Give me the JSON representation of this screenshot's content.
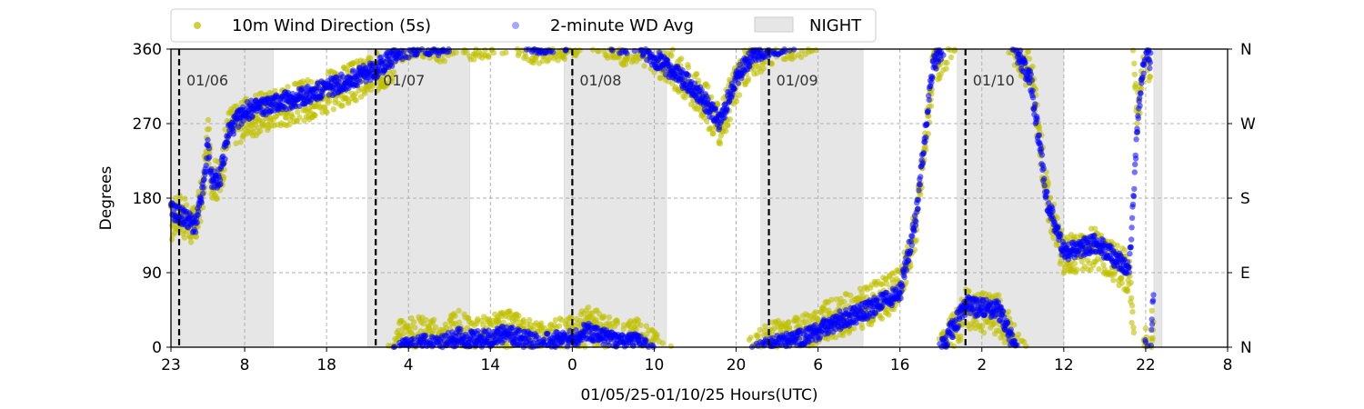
{
  "chart_data": {
    "type": "scatter",
    "xlabel": "01/05/25-01/10/25  Hours(UTC)",
    "ylabel": "Degrees",
    "ylim": [
      0,
      360
    ],
    "yticks": [
      0,
      90,
      180,
      270,
      360
    ],
    "right_ticks": [
      {
        "value": 0,
        "label": "N"
      },
      {
        "value": 90,
        "label": "E"
      },
      {
        "value": 180,
        "label": "S"
      },
      {
        "value": 270,
        "label": "W"
      },
      {
        "value": 360,
        "label": "N"
      }
    ],
    "x_start": "2025-01-05 23:00",
    "x_end": "2025-01-11 08:00",
    "xticks": [
      {
        "time": "2025-01-05 23:00",
        "label": "23"
      },
      {
        "time": "2025-01-06 08:00",
        "label": "8"
      },
      {
        "time": "2025-01-06 18:00",
        "label": "18"
      },
      {
        "time": "2025-01-07 04:00",
        "label": "4"
      },
      {
        "time": "2025-01-07 14:00",
        "label": "14"
      },
      {
        "time": "2025-01-08 00:00",
        "label": "0"
      },
      {
        "time": "2025-01-08 10:00",
        "label": "10"
      },
      {
        "time": "2025-01-08 20:00",
        "label": "20"
      },
      {
        "time": "2025-01-09 06:00",
        "label": "6"
      },
      {
        "time": "2025-01-09 16:00",
        "label": "16"
      },
      {
        "time": "2025-01-10 02:00",
        "label": "2"
      },
      {
        "time": "2025-01-10 12:00",
        "label": "12"
      },
      {
        "time": "2025-01-10 22:00",
        "label": "22"
      },
      {
        "time": "2025-01-11 08:00",
        "label": "8"
      }
    ],
    "day_markers": [
      {
        "time": "2025-01-06 00:00",
        "label": "01/06"
      },
      {
        "time": "2025-01-07 00:00",
        "label": "01/07"
      },
      {
        "time": "2025-01-08 00:00",
        "label": "01/08"
      },
      {
        "time": "2025-01-09 00:00",
        "label": "01/09"
      },
      {
        "time": "2025-01-10 00:00",
        "label": "01/10"
      }
    ],
    "night_periods": [
      {
        "start": "2025-01-05 23:00",
        "end": "2025-01-06 11:30"
      },
      {
        "start": "2025-01-06 23:00",
        "end": "2025-01-07 11:30"
      },
      {
        "start": "2025-01-07 23:00",
        "end": "2025-01-08 11:30"
      },
      {
        "start": "2025-01-08 23:00",
        "end": "2025-01-09 11:30"
      },
      {
        "start": "2025-01-09 23:00",
        "end": "2025-01-10 12:00"
      },
      {
        "start": "2025-01-10 23:00",
        "end": "2025-01-11 00:00"
      }
    ],
    "grid": true,
    "legend_placement": "top-center-outside",
    "legend": [
      {
        "label": "10m Wind Direction (5s)",
        "kind": "marker",
        "color": "#bfbf00"
      },
      {
        "label": "2-minute WD Avg",
        "kind": "marker",
        "color": "#0000ff"
      },
      {
        "label": "NIGHT",
        "kind": "patch",
        "color": "#e6e6e6"
      }
    ],
    "series": [
      {
        "name": "10m Wind Direction (5s)",
        "color": "#bfbf00",
        "points": [
          [
            "2025-01-05 23:00",
            150
          ],
          [
            "2025-01-06 00:00",
            165
          ],
          [
            "2025-01-06 01:00",
            150
          ],
          [
            "2025-01-06 02:00",
            145
          ],
          [
            "2025-01-06 03:00",
            195
          ],
          [
            "2025-01-06 03:30",
            255
          ],
          [
            "2025-01-06 04:00",
            205
          ],
          [
            "2025-01-06 05:00",
            200
          ],
          [
            "2025-01-06 06:00",
            265
          ],
          [
            "2025-01-06 08:00",
            275
          ],
          [
            "2025-01-06 12:00",
            290
          ],
          [
            "2025-01-06 16:00",
            300
          ],
          [
            "2025-01-06 20:00",
            315
          ],
          [
            "2025-01-07 00:00",
            330
          ],
          [
            "2025-01-07 02:00",
            345
          ],
          [
            "2025-01-07 03:00",
            10
          ],
          [
            "2025-01-07 06:00",
            15
          ],
          [
            "2025-01-07 08:00",
            5
          ],
          [
            "2025-01-07 10:00",
            20
          ],
          [
            "2025-01-07 12:00",
            10
          ],
          [
            "2025-01-07 16:00",
            20
          ],
          [
            "2025-01-07 20:00",
            5
          ],
          [
            "2025-01-08 00:00",
            15
          ],
          [
            "2025-01-08 02:00",
            25
          ],
          [
            "2025-01-08 04:00",
            15
          ],
          [
            "2025-01-08 06:00",
            5
          ],
          [
            "2025-01-08 08:00",
            10
          ],
          [
            "2025-01-08 10:00",
            355
          ],
          [
            "2025-01-08 12:00",
            340
          ],
          [
            "2025-01-08 14:00",
            320
          ],
          [
            "2025-01-08 16:00",
            300
          ],
          [
            "2025-01-08 18:00",
            265
          ],
          [
            "2025-01-08 20:00",
            320
          ],
          [
            "2025-01-08 22:00",
            350
          ],
          [
            "2025-01-09 00:00",
            5
          ],
          [
            "2025-01-09 04:00",
            15
          ],
          [
            "2025-01-09 08:00",
            35
          ],
          [
            "2025-01-09 12:00",
            50
          ],
          [
            "2025-01-09 16:00",
            70
          ],
          [
            "2025-01-09 18:00",
            150
          ],
          [
            "2025-01-09 20:00",
            330
          ],
          [
            "2025-01-10 00:00",
            45
          ],
          [
            "2025-01-10 04:00",
            40
          ],
          [
            "2025-01-10 08:00",
            330
          ],
          [
            "2025-01-10 10:00",
            180
          ],
          [
            "2025-01-10 12:00",
            110
          ],
          [
            "2025-01-10 16:00",
            120
          ],
          [
            "2025-01-10 20:00",
            90
          ],
          [
            "2025-01-10 21:00",
            280
          ],
          [
            "2025-01-10 22:00",
            10
          ],
          [
            "2025-01-10 22:30",
            340
          ],
          [
            "2025-01-10 23:00",
            60
          ]
        ]
      },
      {
        "name": "2-minute WD Avg",
        "color": "#0000ff",
        "points": [
          [
            "2025-01-05 23:00",
            165
          ],
          [
            "2025-01-06 00:00",
            160
          ],
          [
            "2025-01-06 01:00",
            155
          ],
          [
            "2025-01-06 02:00",
            145
          ],
          [
            "2025-01-06 03:00",
            195
          ],
          [
            "2025-01-06 03:30",
            245
          ],
          [
            "2025-01-06 04:00",
            200
          ],
          [
            "2025-01-06 05:00",
            205
          ],
          [
            "2025-01-06 06:00",
            260
          ],
          [
            "2025-01-06 08:00",
            285
          ],
          [
            "2025-01-06 12:00",
            295
          ],
          [
            "2025-01-06 16:00",
            305
          ],
          [
            "2025-01-06 20:00",
            320
          ],
          [
            "2025-01-07 00:00",
            335
          ],
          [
            "2025-01-07 02:00",
            350
          ],
          [
            "2025-01-07 03:00",
            358
          ],
          [
            "2025-01-07 06:00",
            5
          ],
          [
            "2025-01-07 08:00",
            3
          ],
          [
            "2025-01-07 10:00",
            12
          ],
          [
            "2025-01-07 12:00",
            8
          ],
          [
            "2025-01-07 16:00",
            15
          ],
          [
            "2025-01-07 20:00",
            5
          ],
          [
            "2025-01-08 00:00",
            10
          ],
          [
            "2025-01-08 02:00",
            20
          ],
          [
            "2025-01-08 04:00",
            12
          ],
          [
            "2025-01-08 06:00",
            5
          ],
          [
            "2025-01-08 08:00",
            5
          ],
          [
            "2025-01-08 10:00",
            350
          ],
          [
            "2025-01-08 12:00",
            335
          ],
          [
            "2025-01-08 14:00",
            320
          ],
          [
            "2025-01-08 16:00",
            300
          ],
          [
            "2025-01-08 18:00",
            270
          ],
          [
            "2025-01-08 20:00",
            325
          ],
          [
            "2025-01-08 22:00",
            355
          ],
          [
            "2025-01-09 00:00",
            2
          ],
          [
            "2025-01-09 04:00",
            10
          ],
          [
            "2025-01-09 08:00",
            30
          ],
          [
            "2025-01-09 12:00",
            45
          ],
          [
            "2025-01-09 16:00",
            65
          ],
          [
            "2025-01-09 18:00",
            160
          ],
          [
            "2025-01-09 20:00",
            340
          ],
          [
            "2025-01-10 00:00",
            50
          ],
          [
            "2025-01-10 04:00",
            45
          ],
          [
            "2025-01-10 08:00",
            320
          ],
          [
            "2025-01-10 10:00",
            175
          ],
          [
            "2025-01-10 12:00",
            115
          ],
          [
            "2025-01-10 16:00",
            125
          ],
          [
            "2025-01-10 20:00",
            95
          ],
          [
            "2025-01-10 21:00",
            270
          ],
          [
            "2025-01-10 22:00",
            5
          ],
          [
            "2025-01-10 22:30",
            345
          ],
          [
            "2025-01-10 23:00",
            70
          ]
        ]
      }
    ]
  }
}
